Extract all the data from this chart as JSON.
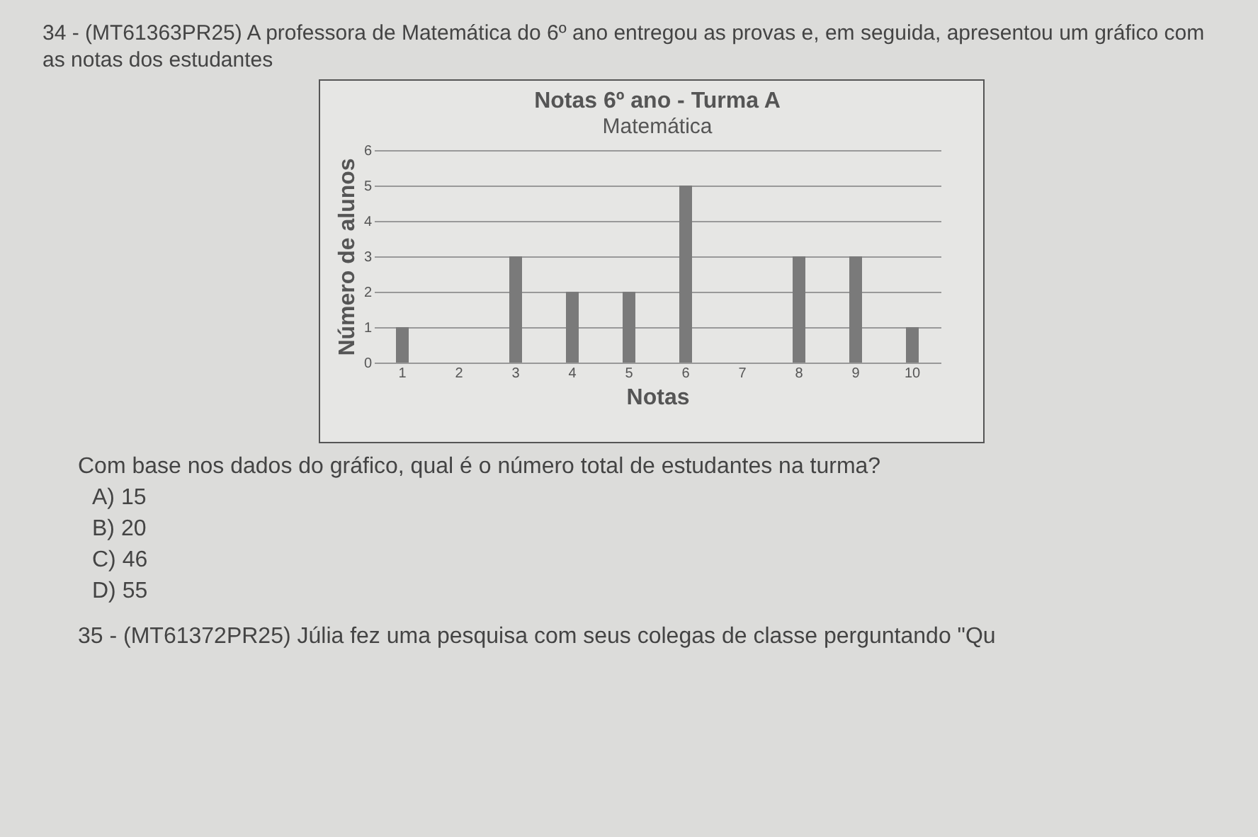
{
  "chart_data": {
    "type": "bar",
    "title": "Notas 6º ano - Turma A",
    "subtitle": "Matemática",
    "xlabel": "Notas",
    "ylabel": "Número de alunos",
    "categories": [
      "1",
      "2",
      "3",
      "4",
      "5",
      "6",
      "7",
      "8",
      "9",
      "10"
    ],
    "values": [
      1,
      0,
      3,
      2,
      2,
      5,
      0,
      3,
      3,
      1
    ],
    "color": "#7a7a7a",
    "ylim": [
      0,
      6
    ],
    "yticks": [
      0,
      1,
      2,
      3,
      4,
      5,
      6
    ],
    "grid": "y",
    "annotations": [
      "34 - (MT61363PR25) A professora de Matemática do 6º ano entregou as provas e, em seguida, apresentou um gráfico com as notas dos estudantes",
      "Com base nos dados do gráfico, qual é o número total de estudantes na turma?",
      "A) 15",
      "B) 20",
      "C) 46",
      "D) 55",
      "35 - (MT61372PR25) Júlia fez uma pesquisa com seus colegas de classe perguntando \"Qu"
    ]
  }
}
